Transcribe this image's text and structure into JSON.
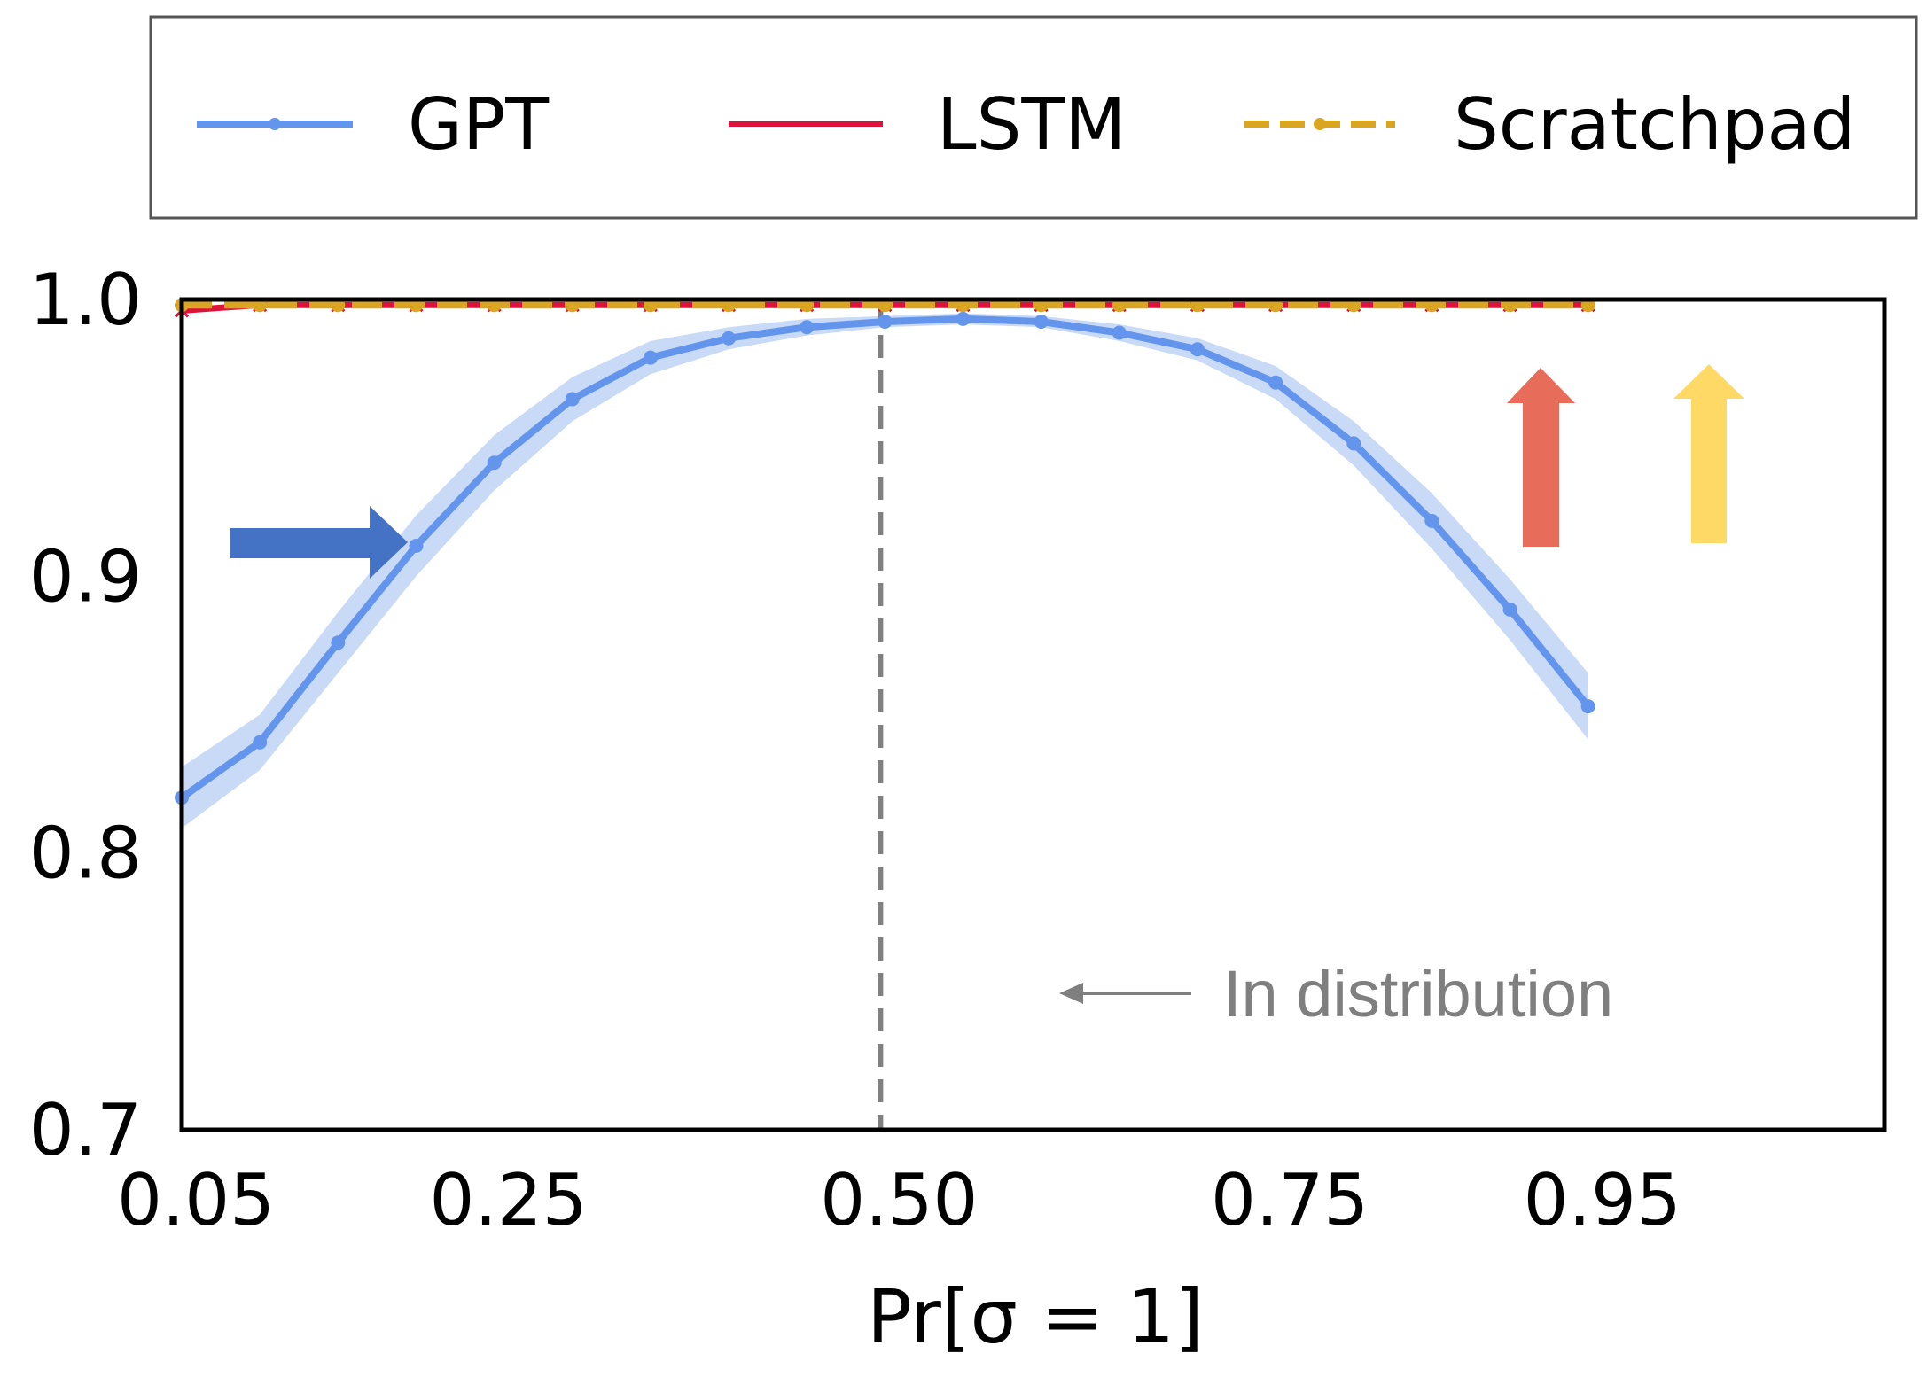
{
  "chart_data": {
    "type": "line",
    "xlabel": "Pr[σ = 1]",
    "ylabel": "",
    "xlim": [
      0.0,
      1.0
    ],
    "ylim": [
      0.7,
      1.0
    ],
    "x_ticks": [
      "0.05",
      "0.25",
      "0.50",
      "0.75",
      "0.95"
    ],
    "x_tick_values": [
      0.05,
      0.25,
      0.5,
      0.75,
      0.95
    ],
    "y_ticks": [
      "0.7",
      "0.8",
      "0.9",
      "1.0"
    ],
    "y_tick_values": [
      0.7,
      0.8,
      0.9,
      1.0
    ],
    "x": [
      0.05,
      0.1,
      0.15,
      0.2,
      0.25,
      0.3,
      0.35,
      0.4,
      0.45,
      0.5,
      0.55,
      0.6,
      0.65,
      0.7,
      0.75,
      0.8,
      0.85,
      0.9,
      0.95
    ],
    "series": [
      {
        "name": "GPT",
        "color": "#6495ED",
        "band_color": "#C9DAF7",
        "marker": "dot",
        "line_style": "solid",
        "values": [
          0.82,
          0.84,
          0.876,
          0.911,
          0.941,
          0.964,
          0.979,
          0.986,
          0.99,
          0.992,
          0.993,
          0.992,
          0.988,
          0.982,
          0.97,
          0.948,
          0.92,
          0.888,
          0.853
        ],
        "band": [
          0.011,
          0.01,
          0.011,
          0.011,
          0.01,
          0.008,
          0.006,
          0.004,
          0.003,
          0.002,
          0.002,
          0.002,
          0.003,
          0.004,
          0.006,
          0.008,
          0.01,
          0.011,
          0.012
        ]
      },
      {
        "name": "LSTM",
        "color": "#DC143C",
        "marker": "x",
        "line_style": "solid",
        "values": [
          0.996,
          0.998,
          0.998,
          0.998,
          0.998,
          0.998,
          0.998,
          0.998,
          0.998,
          0.998,
          0.998,
          0.998,
          0.998,
          0.998,
          0.998,
          0.998,
          0.998,
          0.998,
          0.998
        ]
      },
      {
        "name": "Scratchpad",
        "color": "#DAA520",
        "marker": "dot",
        "line_style": "dashed",
        "values": [
          0.998,
          0.998,
          0.998,
          0.998,
          0.998,
          0.998,
          0.998,
          0.998,
          0.998,
          0.998,
          0.998,
          0.998,
          0.998,
          0.998,
          0.998,
          0.998,
          0.998,
          0.998,
          0.998
        ]
      }
    ],
    "vline": {
      "x": 0.5,
      "color": "#808080",
      "style": "dashed"
    },
    "annotation": {
      "text": "In distribution",
      "x": 0.5,
      "y": 0.75
    },
    "arrows": [
      {
        "direction": "right",
        "color": "#4472C4"
      },
      {
        "direction": "up",
        "color": "#E86C5A"
      },
      {
        "direction": "up",
        "color": "#FFD966"
      }
    ],
    "legend": {
      "placement": "top",
      "columns": 3
    },
    "grid": false
  }
}
